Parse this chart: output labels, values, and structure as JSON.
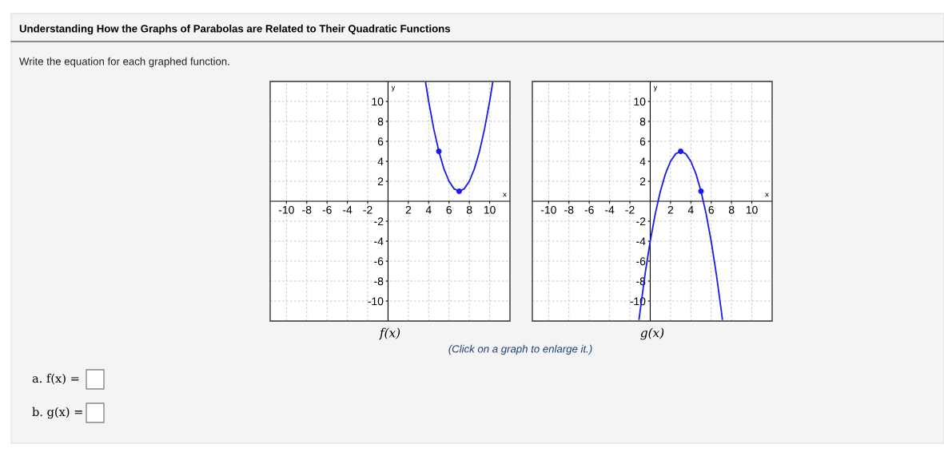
{
  "chart_data": [
    {
      "type": "line",
      "title": "Understanding How the Graphs of Parabolas are Related to Their Quadratic Functions",
      "subtitle": "Write the equation for each graphed function.",
      "xlabel": "x",
      "ylabel": "y",
      "annotations": [
        "f(x)",
        "a. f(x) =",
        "b. g(x) ="
      ],
      "xlim": [
        -11.6,
        12
      ],
      "ylim": [
        -12,
        12
      ],
      "xticks": [
        -10,
        -8,
        -6,
        -4,
        -2,
        2,
        4,
        6,
        8,
        10
      ],
      "yticks": [
        -10,
        -8,
        -6,
        -4,
        -2,
        2,
        4,
        6,
        8,
        10
      ],
      "grid": true,
      "series": [
        {
          "color": "#1a1aee",
          "marker": "none",
          "x": [
            3.7,
            4,
            4.5,
            5,
            5.5,
            6,
            6.5,
            7,
            7.5,
            8,
            8.5,
            9,
            9.5,
            10,
            10.3
          ],
          "values": [
            11.89,
            10,
            7.25,
            5,
            3.25,
            2,
            1.25,
            1,
            1.25,
            2,
            3.25,
            5,
            7.25,
            10,
            11.89
          ]
        },
        {
          "type": "scatter",
          "color": "#1a1aee",
          "marker": "circle",
          "x": [
            5,
            7
          ],
          "values": [
            5,
            1
          ]
        }
      ]
    },
    {
      "type": "line",
      "xlabel": "x",
      "ylabel": "y",
      "annotations": [
        "g(x)",
        "(Click on a graph to enlarge it.)"
      ],
      "xlim": [
        -11.6,
        12
      ],
      "ylim": [
        -12,
        12
      ],
      "xticks": [
        -10,
        -8,
        -6,
        -4,
        -2,
        2,
        4,
        6,
        8,
        10
      ],
      "yticks": [
        -10,
        -8,
        -6,
        -4,
        -2,
        2,
        4,
        6,
        8,
        10
      ],
      "grid": true,
      "series": [
        {
          "color": "#1a1aee",
          "marker": "none",
          "x": [
            -1.1,
            -0.5,
            0,
            0.5,
            1,
            1.5,
            2,
            2.5,
            3,
            3.5,
            4,
            4.5,
            5,
            5.5,
            6,
            6.5,
            7,
            7.1
          ],
          "values": [
            -11.81,
            -7.25,
            -4,
            -1.25,
            1,
            2.75,
            4,
            4.75,
            5,
            4.75,
            4,
            2.75,
            1,
            -1.25,
            -4,
            -7.25,
            -11,
            -11.81
          ]
        },
        {
          "type": "scatter",
          "color": "#1a1aee",
          "marker": "circle",
          "x": [
            3,
            5
          ],
          "values": [
            5,
            1
          ]
        }
      ]
    }
  ]
}
